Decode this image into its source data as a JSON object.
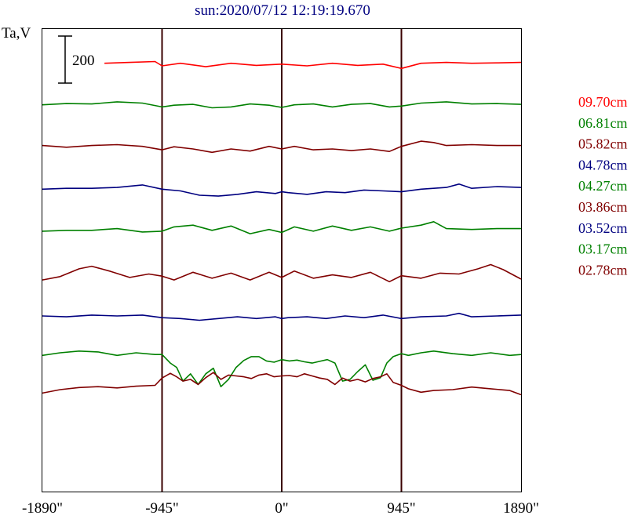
{
  "chart_data": {
    "type": "line",
    "title": "sun:2020/07/12 12:19:19.670",
    "ylabel": "Ta,V",
    "scale_bar_label": "200",
    "x": {
      "range": [
        -1890,
        1890
      ],
      "ticks": [
        -1890,
        -945,
        0,
        945,
        1890
      ],
      "tick_labels": [
        "-1890\"",
        "-945\"",
        "0\"",
        "945\"",
        "1890\""
      ],
      "vertical_lines_at": [
        -945,
        0,
        945
      ]
    },
    "y_range": [
      0,
      1080
    ],
    "grid": false,
    "legend_placement": "right",
    "series": [
      {
        "name": "09.70cm",
        "color": "#ff0000",
        "baseline": 1000,
        "x": [
          -1400,
          -1200,
          -1000,
          -945,
          -800,
          -600,
          -400,
          -200,
          0,
          200,
          400,
          600,
          800,
          945,
          1100,
          1300,
          1500,
          1700,
          1890
        ],
        "values": [
          1000,
          1002,
          1004,
          994,
          1000,
          992,
          1000,
          995,
          998,
          994,
          1000,
          995,
          998,
          988,
          1000,
          1002,
          1000,
          1001,
          1002
        ]
      },
      {
        "name": "06.81cm",
        "color": "#008000",
        "baseline": 905,
        "x": [
          -1890,
          -1700,
          -1500,
          -1300,
          -1100,
          -945,
          -850,
          -700,
          -550,
          -400,
          -250,
          -100,
          0,
          100,
          250,
          400,
          550,
          700,
          850,
          945,
          1100,
          1300,
          1500,
          1700,
          1890
        ],
        "values": [
          903,
          906,
          905,
          910,
          907,
          898,
          902,
          904,
          896,
          898,
          905,
          902,
          897,
          903,
          905,
          898,
          904,
          906,
          898,
          900,
          907,
          910,
          905,
          906,
          904
        ]
      },
      {
        "name": "05.82cm",
        "color": "#800000",
        "baseline": 808,
        "x": [
          -1890,
          -1700,
          -1500,
          -1300,
          -1100,
          -945,
          -850,
          -700,
          -550,
          -400,
          -250,
          -100,
          0,
          100,
          250,
          400,
          550,
          700,
          850,
          945,
          1100,
          1200,
          1300,
          1500,
          1700,
          1890
        ],
        "values": [
          808,
          804,
          808,
          810,
          806,
          798,
          805,
          800,
          792,
          800,
          795,
          806,
          800,
          806,
          798,
          800,
          796,
          800,
          794,
          806,
          818,
          815,
          808,
          810,
          808,
          808
        ]
      },
      {
        "name": "04.78cm",
        "color": "#000080",
        "baseline": 710,
        "x": [
          -1890,
          -1700,
          -1500,
          -1300,
          -1100,
          -945,
          -800,
          -650,
          -500,
          -350,
          -200,
          -50,
          0,
          50,
          200,
          350,
          500,
          650,
          800,
          945,
          1100,
          1300,
          1400,
          1500,
          1700,
          1890
        ],
        "values": [
          706,
          708,
          708,
          710,
          716,
          706,
          702,
          692,
          690,
          694,
          700,
          696,
          700,
          698,
          694,
          700,
          698,
          704,
          702,
          700,
          706,
          710,
          718,
          708,
          712,
          710
        ]
      },
      {
        "name": "04.27cm",
        "color": "#008000",
        "baseline": 615,
        "x": [
          -1890,
          -1700,
          -1500,
          -1300,
          -1100,
          -945,
          -850,
          -700,
          -550,
          -400,
          -250,
          -100,
          0,
          100,
          250,
          400,
          550,
          700,
          850,
          945,
          1100,
          1200,
          1300,
          1500,
          1700,
          1890
        ],
        "values": [
          608,
          610,
          610,
          614,
          606,
          608,
          618,
          622,
          610,
          620,
          602,
          612,
          605,
          618,
          608,
          620,
          610,
          618,
          608,
          615,
          622,
          630,
          614,
          612,
          614,
          614
        ]
      },
      {
        "name": "03.86cm",
        "color": "#800000",
        "baseline": 505,
        "x": [
          -1890,
          -1750,
          -1600,
          -1500,
          -1350,
          -1200,
          -1050,
          -945,
          -850,
          -700,
          -550,
          -400,
          -250,
          -100,
          0,
          100,
          250,
          400,
          550,
          700,
          850,
          945,
          1100,
          1250,
          1400,
          1550,
          1650,
          1750,
          1890
        ],
        "values": [
          494,
          502,
          520,
          526,
          514,
          500,
          508,
          503,
          494,
          512,
          498,
          510,
          494,
          512,
          500,
          515,
          498,
          506,
          500,
          512,
          490,
          504,
          498,
          510,
          508,
          520,
          530,
          518,
          496
        ]
      },
      {
        "name": "03.52cm",
        "color": "#000080",
        "baseline": 410,
        "x": [
          -1890,
          -1700,
          -1500,
          -1300,
          -1100,
          -945,
          -800,
          -650,
          -500,
          -350,
          -200,
          -50,
          0,
          50,
          200,
          350,
          500,
          650,
          800,
          945,
          1100,
          1300,
          1400,
          1500,
          1700,
          1890
        ],
        "values": [
          410,
          408,
          412,
          410,
          412,
          406,
          404,
          400,
          404,
          408,
          404,
          408,
          404,
          406,
          408,
          404,
          410,
          406,
          412,
          404,
          408,
          410,
          416,
          408,
          410,
          412
        ]
      },
      {
        "name": "03.17cm",
        "color": "#008000",
        "baseline": 315,
        "x": [
          -1890,
          -1750,
          -1600,
          -1450,
          -1300,
          -1150,
          -1000,
          -945,
          -880,
          -830,
          -780,
          -720,
          -660,
          -600,
          -540,
          -480,
          -420,
          -360,
          -300,
          -240,
          -180,
          -120,
          -60,
          0,
          60,
          120,
          180,
          240,
          300,
          360,
          420,
          480,
          540,
          600,
          660,
          720,
          780,
          830,
          880,
          945,
          1000,
          1100,
          1200,
          1350,
          1500,
          1650,
          1800,
          1890
        ],
        "values": [
          318,
          324,
          328,
          326,
          318,
          324,
          320,
          320,
          300,
          290,
          258,
          275,
          250,
          275,
          288,
          245,
          262,
          290,
          306,
          315,
          315,
          305,
          302,
          308,
          305,
          307,
          303,
          300,
          304,
          308,
          300,
          258,
          262,
          280,
          296,
          260,
          266,
          300,
          315,
          322,
          318,
          324,
          328,
          322,
          318,
          324,
          318,
          320
        ]
      },
      {
        "name": "02.78cm",
        "color": "#800000",
        "baseline": 230,
        "x": [
          -1890,
          -1750,
          -1600,
          -1450,
          -1300,
          -1150,
          -1000,
          -945,
          -880,
          -830,
          -780,
          -720,
          -660,
          -600,
          -540,
          -480,
          -420,
          -360,
          -300,
          -240,
          -180,
          -120,
          -60,
          0,
          60,
          120,
          180,
          240,
          300,
          360,
          420,
          480,
          540,
          600,
          660,
          720,
          780,
          830,
          880,
          945,
          1000,
          1100,
          1200,
          1350,
          1500,
          1650,
          1800,
          1890
        ],
        "values": [
          230,
          238,
          243,
          245,
          242,
          246,
          248,
          265,
          276,
          268,
          258,
          262,
          250,
          266,
          278,
          262,
          272,
          270,
          268,
          264,
          272,
          275,
          268,
          270,
          271,
          268,
          275,
          270,
          265,
          262,
          250,
          265,
          258,
          262,
          256,
          264,
          268,
          275,
          255,
          248,
          240,
          232,
          236,
          238,
          244,
          240,
          236,
          226
        ]
      }
    ]
  }
}
